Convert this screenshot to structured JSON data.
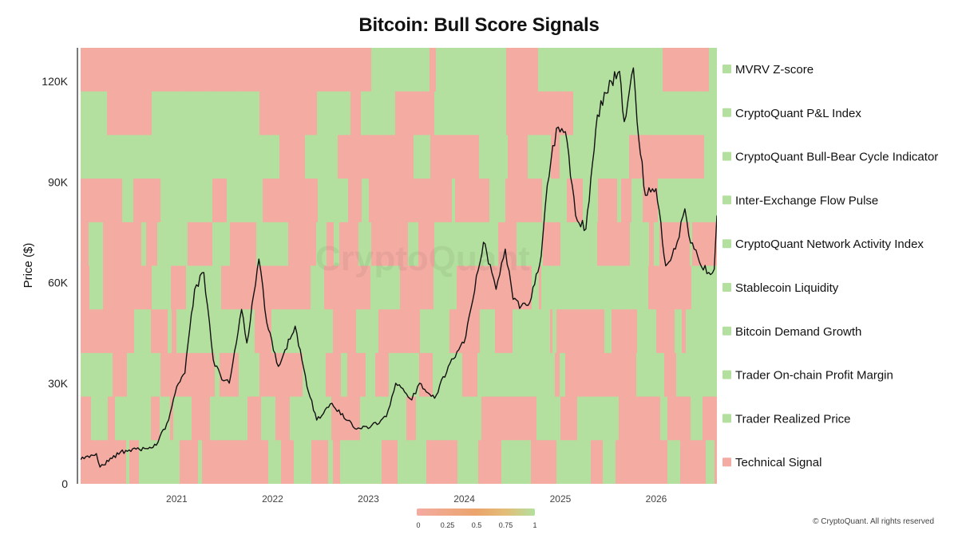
{
  "title": "Bitcoin: Bull Score Signals",
  "watermark": "CryptoQuant",
  "copyright": "© CryptoQuant. All rights reserved",
  "colors": {
    "bull": "#b3e09f",
    "bear": "#f4aba2",
    "line": "#111111"
  },
  "chart_data": {
    "type": "line",
    "title": "Bitcoin: Bull Score Signals",
    "ylabel": "Price ($)",
    "xlabel": "",
    "ylim": [
      0,
      130000
    ],
    "xlim": [
      "2020-01-01",
      "2026-08-20"
    ],
    "yticks": [
      0,
      30000,
      60000,
      90000,
      120000
    ],
    "ytick_labels": [
      "0",
      "30K",
      "60K",
      "90K",
      "120K"
    ],
    "xticks": [
      "2021",
      "2022",
      "2023",
      "2024",
      "2025",
      "2026"
    ],
    "series": [
      {
        "name": "Price",
        "x": [
          "2020-01-01",
          "2020-03-01",
          "2020-03-15",
          "2020-06-01",
          "2020-09-01",
          "2020-10-15",
          "2020-12-01",
          "2021-01-01",
          "2021-02-01",
          "2021-03-10",
          "2021-04-14",
          "2021-05-20",
          "2021-06-22",
          "2021-07-20",
          "2021-09-05",
          "2021-09-25",
          "2021-11-10",
          "2021-12-10",
          "2022-01-23",
          "2022-03-28",
          "2022-05-12",
          "2022-06-18",
          "2022-08-15",
          "2022-11-10",
          "2022-12-31",
          "2023-03-10",
          "2023-04-15",
          "2023-06-15",
          "2023-07-15",
          "2023-09-10",
          "2023-11-01",
          "2023-12-31",
          "2024-03-14",
          "2024-04-15",
          "2024-05-01",
          "2024-06-05",
          "2024-07-05",
          "2024-08-05",
          "2024-09-06",
          "2024-10-20",
          "2024-11-12",
          "2024-12-17",
          "2025-01-20",
          "2025-02-28",
          "2025-04-08",
          "2025-05-22",
          "2025-07-14",
          "2025-08-14",
          "2025-09-01",
          "2025-10-06",
          "2025-10-20",
          "2025-11-21",
          "2025-12-31",
          "2026-02-06",
          "2026-03-15",
          "2026-04-20",
          "2026-05-05",
          "2026-06-15",
          "2026-07-20",
          "2026-08-10",
          "2026-08-20"
        ],
        "values": [
          7200,
          9000,
          5000,
          9500,
          10500,
          11500,
          19000,
          29000,
          33000,
          58000,
          63000,
          37000,
          31000,
          30000,
          52000,
          42000,
          67000,
          48000,
          35000,
          47000,
          29000,
          19000,
          24000,
          16500,
          16500,
          20000,
          30000,
          25000,
          30000,
          25500,
          35000,
          42000,
          72000,
          63000,
          58000,
          70000,
          55000,
          53000,
          54000,
          68000,
          89000,
          106000,
          105000,
          80000,
          76000,
          110000,
          120000,
          123000,
          108000,
          124000,
          108000,
          86000,
          88000,
          65000,
          70000,
          82000,
          74000,
          66000,
          63000,
          64000,
          80000
        ]
      }
    ],
    "signals": [
      {
        "name": "MVRV Z-score",
        "legend_color": "bull"
      },
      {
        "name": "CryptoQuant P&L Index",
        "legend_color": "bull"
      },
      {
        "name": "CryptoQuant Bull-Bear Cycle Indicator",
        "legend_color": "bull"
      },
      {
        "name": "Inter-Exchange Flow Pulse",
        "legend_color": "bull"
      },
      {
        "name": "CryptoQuant Network Activity Index",
        "legend_color": "bull"
      },
      {
        "name": "Stablecoin Liquidity",
        "legend_color": "bull"
      },
      {
        "name": "Bitcoin Demand Growth",
        "legend_color": "bull"
      },
      {
        "name": "Trader On-chain Profit Margin",
        "legend_color": "bull"
      },
      {
        "name": "Trader Realized Price",
        "legend_color": "bull"
      },
      {
        "name": "Technical Signal",
        "legend_color": "bear"
      }
    ],
    "colorbar": {
      "ticks": [
        "0",
        "0.25",
        "0.5",
        "0.75",
        "1"
      ],
      "stops": [
        "#f4aba2",
        "#f0a070",
        "#e9b46e",
        "#b3e09f"
      ]
    },
    "legend_position": "right"
  }
}
